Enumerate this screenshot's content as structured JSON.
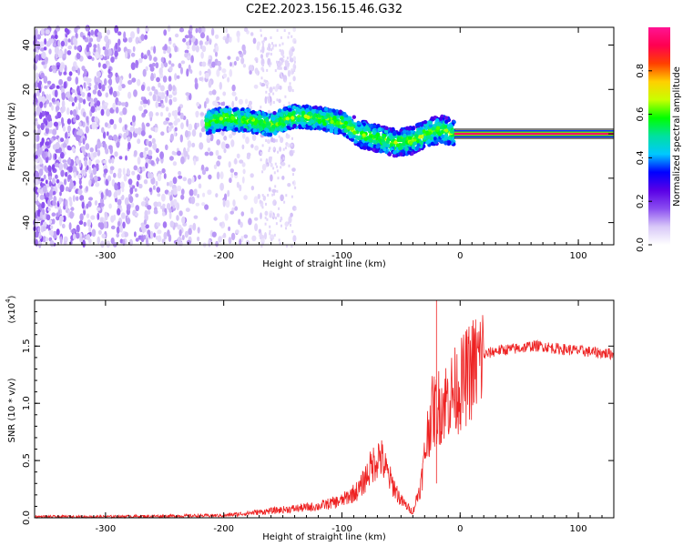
{
  "title": "C2E2.2023.156.15.46.G32",
  "chart_data": [
    {
      "type": "heatmap",
      "xlabel": "Height of straight line (km)",
      "ylabel": "Frequency (Hz)",
      "xlim": [
        -360,
        130
      ],
      "ylim": [
        -50,
        48
      ],
      "xticks": [
        -300,
        -200,
        -100,
        0,
        100
      ],
      "yticks": [
        -40,
        -20,
        0,
        20,
        40
      ],
      "colorbar": {
        "label": "Normalized spectral amplitude",
        "range": [
          0.0,
          1.0
        ],
        "ticks": [
          0.0,
          0.2,
          0.4,
          0.6,
          0.8
        ],
        "tick_labels": [
          "0.0",
          "0.2",
          "0.4",
          "0.6",
          "0.8"
        ],
        "colormap": [
          "#ffffff",
          "#d8c8f8",
          "#8a4df0",
          "#5a00e6",
          "#0000ff",
          "#00c8ff",
          "#00e0a0",
          "#00ff00",
          "#c8ff00",
          "#ffd000",
          "#ff4000",
          "#ff0050",
          "#ff1493"
        ]
      },
      "features": [
        {
          "name": "scattered noise",
          "x_range": [
            -360,
            -140
          ],
          "freq_range": [
            -50,
            48
          ],
          "amplitude": 0.12
        },
        {
          "name": "signal band",
          "points": [
            [
              -215,
              5
            ],
            [
              -200,
              7
            ],
            [
              -180,
              6
            ],
            [
              -160,
              4
            ],
            [
              -140,
              8
            ],
            [
              -120,
              7
            ],
            [
              -100,
              5
            ],
            [
              -85,
              0
            ],
            [
              -70,
              -2
            ],
            [
              -55,
              -4
            ],
            [
              -40,
              -3
            ],
            [
              -25,
              1
            ],
            [
              -15,
              2
            ],
            [
              -5,
              0
            ]
          ],
          "amplitude": 0.35
        },
        {
          "name": "carrier line",
          "x_range": [
            -5,
            130
          ],
          "freq": 0,
          "amplitude": 0.95
        }
      ]
    },
    {
      "type": "line",
      "xlabel": "Height of straight line (km)",
      "ylabel": "SNR (10 * v/v)",
      "y_exponent_label": "(x10",
      "y_exponent_value": "4",
      "xlim": [
        -360,
        130
      ],
      "ylim": [
        0,
        1.9
      ],
      "xticks": [
        -300,
        -200,
        -100,
        0,
        100
      ],
      "yticks": [
        0.0,
        0.5,
        1.0,
        1.5
      ],
      "ytick_labels": [
        "0.0",
        "0.5",
        "1.0",
        "1.5"
      ],
      "color": "#ee2222",
      "x": [
        -360,
        -300,
        -250,
        -200,
        -180,
        -160,
        -140,
        -120,
        -100,
        -85,
        -75,
        -68,
        -60,
        -50,
        -40,
        -33,
        -28,
        -25,
        -20,
        -15,
        -10,
        -5,
        0,
        10,
        20,
        30,
        40,
        50,
        60,
        70,
        80,
        90,
        100,
        110,
        120,
        130
      ],
      "y": [
        0.01,
        0.01,
        0.015,
        0.02,
        0.04,
        0.06,
        0.08,
        0.1,
        0.15,
        0.25,
        0.45,
        0.55,
        0.35,
        0.15,
        0.05,
        0.3,
        0.7,
        0.9,
        0.95,
        1.0,
        1.05,
        1.1,
        1.15,
        1.3,
        1.42,
        1.46,
        1.47,
        1.48,
        1.5,
        1.5,
        1.48,
        1.47,
        1.46,
        1.45,
        1.44,
        1.43
      ],
      "spike": {
        "x": -20,
        "y": 1.9
      }
    }
  ]
}
